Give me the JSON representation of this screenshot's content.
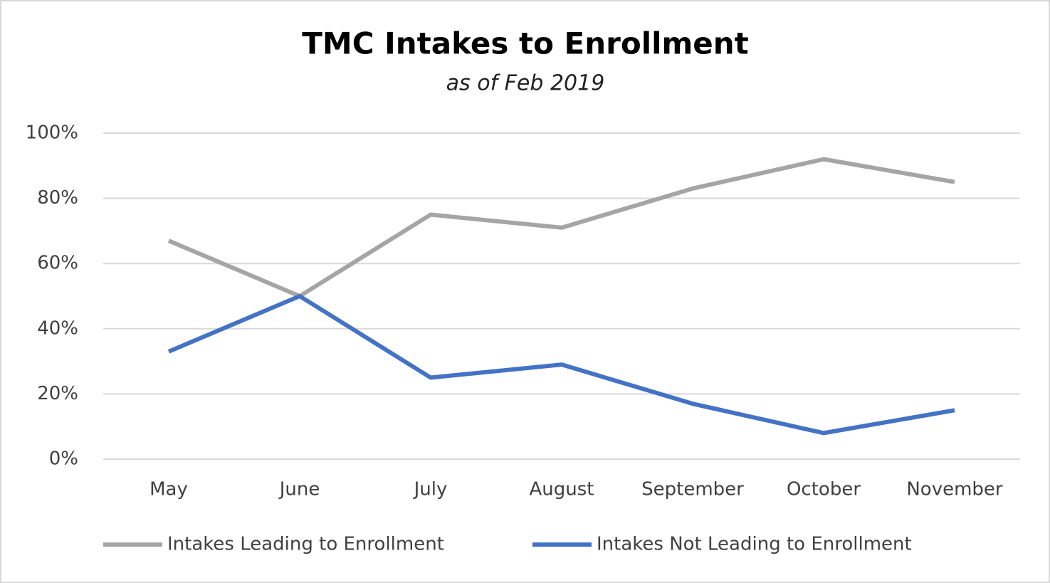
{
  "chart_data": {
    "type": "line",
    "title": "TMC Intakes to Enrollment",
    "subtitle": "as of Feb 2019",
    "categories": [
      "May",
      "June",
      "July",
      "August",
      "September",
      "October",
      "November"
    ],
    "series": [
      {
        "name": "Intakes Leading to Enrollment",
        "color": "#a5a5a5",
        "values": [
          67,
          50,
          75,
          71,
          83,
          92,
          85
        ]
      },
      {
        "name": "Intakes Not Leading to Enrollment",
        "color": "#4472c4",
        "values": [
          33,
          50,
          25,
          29,
          17,
          8,
          15
        ]
      }
    ],
    "ylim": [
      0,
      100
    ],
    "yticks": [
      {
        "value": 0,
        "label": "0%"
      },
      {
        "value": 20,
        "label": "20%"
      },
      {
        "value": 40,
        "label": "40%"
      },
      {
        "value": 60,
        "label": "60%"
      },
      {
        "value": 80,
        "label": "80%"
      },
      {
        "value": 100,
        "label": "100%"
      }
    ],
    "grid": true,
    "legend": "bottom"
  }
}
